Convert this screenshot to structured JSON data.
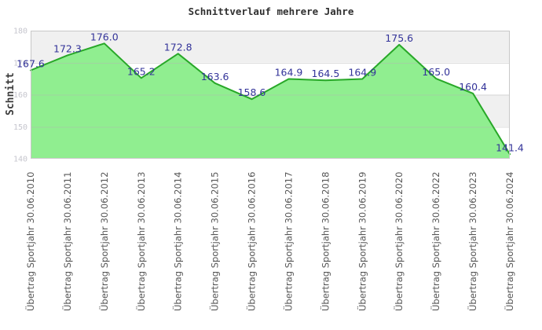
{
  "page": {
    "background": "#FFFFFF"
  },
  "chart_data": {
    "type": "area",
    "title": "Schnittverlauf mehrere Jahre",
    "ylabel": "Schnitt",
    "xlabel": "",
    "categories": [
      "Übertrag Sportjahr 30.06.2010",
      "Übertrag Sportjahr 30.06.2011",
      "Übertrag Sportjahr 30.06.2012",
      "Übertrag Sportjahr 30.06.2013",
      "Übertrag Sportjahr 30.06.2014",
      "Übertrag Sportjahr 30.06.2015",
      "Übertrag Sportjahr 30.06.2016",
      "Übertrag Sportjahr 30.06.2017",
      "Übertrag Sportjahr 30.06.2018",
      "Übertrag Sportjahr 30.06.2019",
      "Übertrag Sportjahr 30.06.2020",
      "Übertrag Sportjahr 30.06.2022",
      "Übertrag Sportjahr 30.06.2023",
      "Übertrag Sportjahr 30.06.2024"
    ],
    "values": [
      167.6,
      172.3,
      176.0,
      165.2,
      172.8,
      163.6,
      158.6,
      164.9,
      164.5,
      164.9,
      175.6,
      165.0,
      160.4,
      141.4
    ],
    "value_labels": [
      "167.6",
      "172.3",
      "176.0",
      "165.2",
      "172.8",
      "163.6",
      "158.6",
      "164.9",
      "164.5",
      "164.9",
      "175.6",
      "165.0",
      "160.4",
      "141.4"
    ],
    "ylim": [
      140,
      180
    ],
    "yticks": [
      140,
      150,
      160,
      170,
      180
    ],
    "grid": "horizontal-bands",
    "legend": "none",
    "x_label_rotation_deg": 90,
    "colors": {
      "area_fill": "#90EE90",
      "line": "#28A828",
      "value_label": "#333399",
      "y_tick_label": "#C6C6CE",
      "x_label": "#575757",
      "band_gray": "#F0F0F0",
      "band_white": "#FFFFFF",
      "gridline": "#B4B4B4",
      "plot_border": "#C8C8C8",
      "title": "#303030"
    }
  }
}
